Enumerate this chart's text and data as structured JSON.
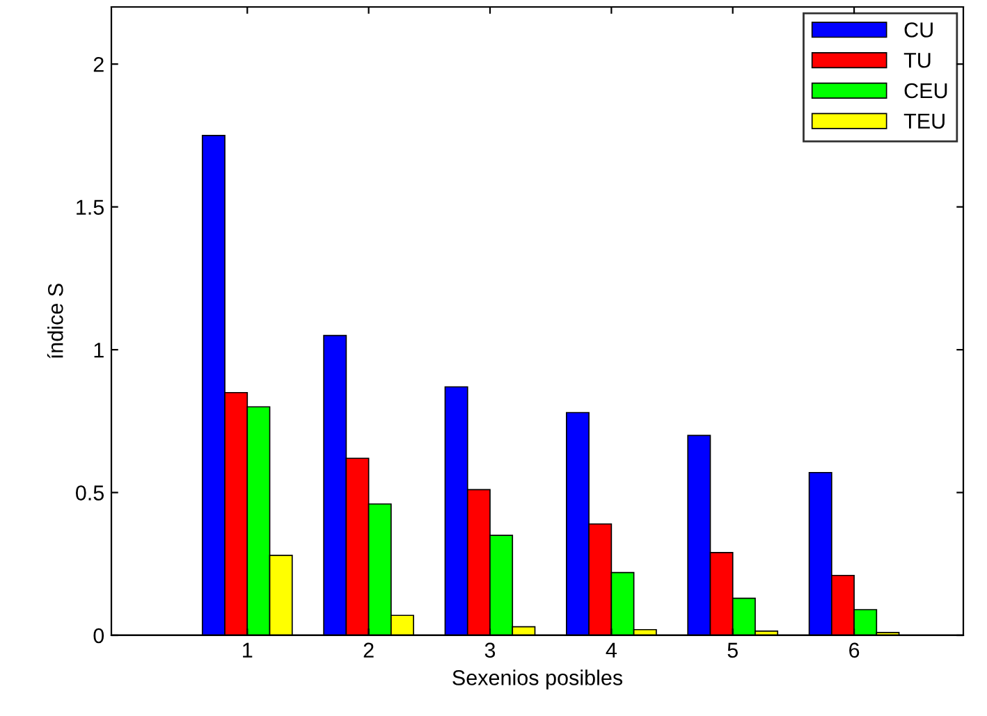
{
  "chart_data": {
    "type": "bar",
    "xlabel": "Sexenios posibles",
    "ylabel": "índice S",
    "categories": [
      "1",
      "2",
      "3",
      "4",
      "5",
      "6"
    ],
    "series": [
      {
        "name": "CU",
        "color": "#0000ff",
        "values": [
          1.75,
          1.05,
          0.87,
          0.78,
          0.7,
          0.57
        ]
      },
      {
        "name": "TU",
        "color": "#ff0000",
        "values": [
          0.85,
          0.62,
          0.51,
          0.39,
          0.29,
          0.21
        ]
      },
      {
        "name": "CEU",
        "color": "#00ff00",
        "values": [
          0.8,
          0.46,
          0.35,
          0.22,
          0.13,
          0.09
        ]
      },
      {
        "name": "TEU",
        "color": "#ffff00",
        "values": [
          0.28,
          0.07,
          0.03,
          0.02,
          0.015,
          0.01
        ]
      }
    ],
    "ylim": [
      0,
      2.2
    ],
    "yticks": [
      0,
      0.5,
      1,
      1.5,
      2
    ],
    "grid": false,
    "legend": "top right"
  }
}
